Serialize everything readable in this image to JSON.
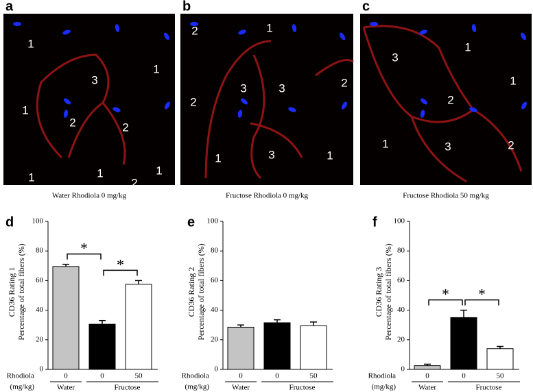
{
  "images": [
    {
      "letter": "a",
      "caption": "Water Rhodiola 0 mg/kg",
      "labels": [
        "1",
        "3",
        "1",
        "1",
        "2",
        "2",
        "1",
        "1",
        "1",
        "2"
      ]
    },
    {
      "letter": "b",
      "caption": "Fructose Rhodiola 0 mg/kg",
      "labels": [
        "2",
        "1",
        "3",
        "3",
        "2",
        "2",
        "1",
        "3",
        "1"
      ]
    },
    {
      "letter": "c",
      "caption": "Fructose Rhodiola 50 mg/kg",
      "labels": [
        "3",
        "1",
        "1",
        "2",
        "1",
        "3",
        "2"
      ]
    }
  ],
  "chart_data": [
    {
      "type": "bar",
      "letter": "d",
      "ylabel": [
        "CD36 Rating 1",
        "Percentage of total fibers (%)"
      ],
      "row_label": [
        "Rhodiola",
        "(mg/kg)"
      ],
      "categories": [
        "0",
        "0",
        "50"
      ],
      "groups": [
        "Water",
        "Fructose"
      ],
      "values": [
        69.5,
        30.5,
        57.5
      ],
      "errors": [
        1.5,
        2.5,
        2.5
      ],
      "colors": [
        "#c4c4c4",
        "#000000",
        "#ffffff"
      ],
      "annotations": [
        "*",
        "*"
      ],
      "ylim": [
        0,
        100
      ],
      "yticks": [
        0,
        20,
        40,
        60,
        80,
        100
      ]
    },
    {
      "type": "bar",
      "letter": "e",
      "ylabel": [
        "CD36 Rating 2",
        "Percentage of total fibers (%)"
      ],
      "row_label": [
        "Rhodiola",
        "(mg/kg)"
      ],
      "categories": [
        "0",
        "0",
        "50"
      ],
      "groups": [
        "Water",
        "Fructose"
      ],
      "values": [
        28.5,
        31.5,
        29.5
      ],
      "errors": [
        1.5,
        2,
        2.5
      ],
      "colors": [
        "#c4c4c4",
        "#000000",
        "#ffffff"
      ],
      "annotations": [],
      "ylim": [
        0,
        100
      ],
      "yticks": [
        0,
        20,
        40,
        60,
        80,
        100
      ]
    },
    {
      "type": "bar",
      "letter": "f",
      "ylabel": [
        "CD36 Rating 3",
        "Percentage of total fibers (%)"
      ],
      "row_label": [
        "Rhodiola",
        "(mg/kg)"
      ],
      "categories": [
        "0",
        "0",
        "50"
      ],
      "groups": [
        "Water",
        "Fructose"
      ],
      "values": [
        2.5,
        35,
        14
      ],
      "errors": [
        1,
        5,
        1.5
      ],
      "colors": [
        "#c4c4c4",
        "#000000",
        "#ffffff"
      ],
      "annotations": [
        "*",
        "*"
      ],
      "ylim": [
        0,
        100
      ],
      "yticks": [
        0,
        20,
        40,
        60,
        80,
        100
      ]
    }
  ]
}
